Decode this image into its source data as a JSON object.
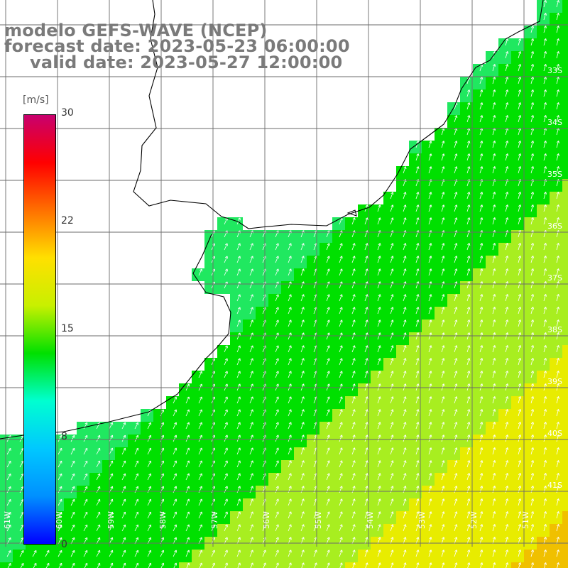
{
  "title": {
    "line1": "modelo GEFS-WAVE (NCEP)",
    "line2": "forecast date: 2023-05-23 06:00:00",
    "line3": "valid date: 2023-05-27 12:00:00"
  },
  "colorbar": {
    "unit": "[m/s]",
    "tick_labels": [
      "30",
      "22",
      "15",
      "8",
      "0"
    ],
    "colors": [
      "#c8006e",
      "#ff0000",
      "#ff7000",
      "#ffe000",
      "#c8f000",
      "#00e000",
      "#00ffd0",
      "#00c8ff",
      "#0090ff",
      "#0000ff"
    ]
  },
  "axes": {
    "lat_labels": [
      "33S",
      "34S",
      "35S",
      "36S",
      "37S",
      "38S",
      "39S",
      "40S",
      "41S"
    ],
    "lon_labels": [
      "61W",
      "60W",
      "59W",
      "58W",
      "57W",
      "56W",
      "55W",
      "54W",
      "53W",
      "52W",
      "51W"
    ]
  },
  "field_colors": {
    "low": "#00c8ff",
    "mid": "#30f0a0",
    "high": "#00e000",
    "yellow": "#e8ec00",
    "orange": "#f0c000",
    "arrow": "#ffffff",
    "land": "#ffffff",
    "coast": "#000000",
    "grid": "#6b6b6b"
  }
}
